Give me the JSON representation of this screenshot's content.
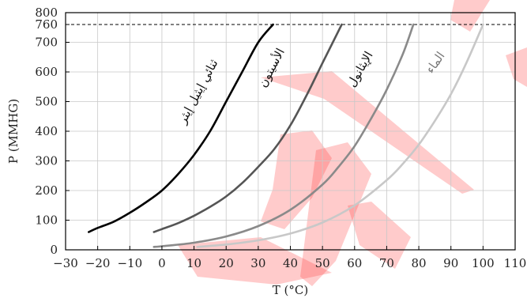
{
  "chart_data": {
    "type": "line",
    "xlabel": "T (°C)",
    "ylabel": "P (MMHG)",
    "xlim": [
      -30,
      110
    ],
    "ylim": [
      0,
      800
    ],
    "x_ticks": [
      "−30",
      "−20",
      "−10",
      "0",
      "10",
      "20",
      "30",
      "40",
      "50",
      "60",
      "70",
      "80",
      "90",
      "100",
      "110"
    ],
    "y_ticks": [
      "0",
      "100",
      "200",
      "300",
      "400",
      "500",
      "600",
      "700",
      "760",
      "800"
    ],
    "reference_line": {
      "y": 760,
      "style": "dashed"
    },
    "grid": true,
    "legend": "none",
    "watermark": {
      "color": "#ff3030",
      "opacity": 0.25
    },
    "series": [
      {
        "name": "ثنائي إيثيل إيثر",
        "color": "#000000",
        "x": [
          -22.8,
          -20,
          -15,
          -10,
          -5,
          0,
          5,
          10,
          15,
          20,
          25,
          30,
          34.6
        ],
        "y": [
          60,
          74,
          95,
          125,
          160,
          200,
          255,
          320,
          400,
          500,
          600,
          700,
          760
        ]
      },
      {
        "name": "الأسيتون",
        "color": "#555555",
        "x": [
          -2.5,
          0,
          5,
          10,
          15,
          20,
          25,
          30,
          35,
          40,
          45,
          50,
          56
        ],
        "y": [
          60,
          70,
          90,
          115,
          145,
          180,
          225,
          280,
          340,
          420,
          520,
          630,
          760
        ]
      },
      {
        "name": "الإيثانول",
        "color": "#8a8a8a",
        "x": [
          -2.5,
          0,
          10,
          20,
          30,
          40,
          50,
          55,
          60,
          65,
          70,
          75,
          78.3
        ],
        "y": [
          10,
          12,
          24,
          45,
          80,
          135,
          220,
          280,
          350,
          440,
          540,
          660,
          760
        ]
      },
      {
        "name": "الماء",
        "color": "#c8c8c8",
        "x": [
          11,
          20,
          30,
          40,
          50,
          60,
          70,
          75,
          80,
          85,
          90,
          95,
          100
        ],
        "y": [
          10,
          18,
          32,
          55,
          92,
          150,
          235,
          290,
          355,
          435,
          525,
          635,
          760
        ]
      }
    ]
  }
}
